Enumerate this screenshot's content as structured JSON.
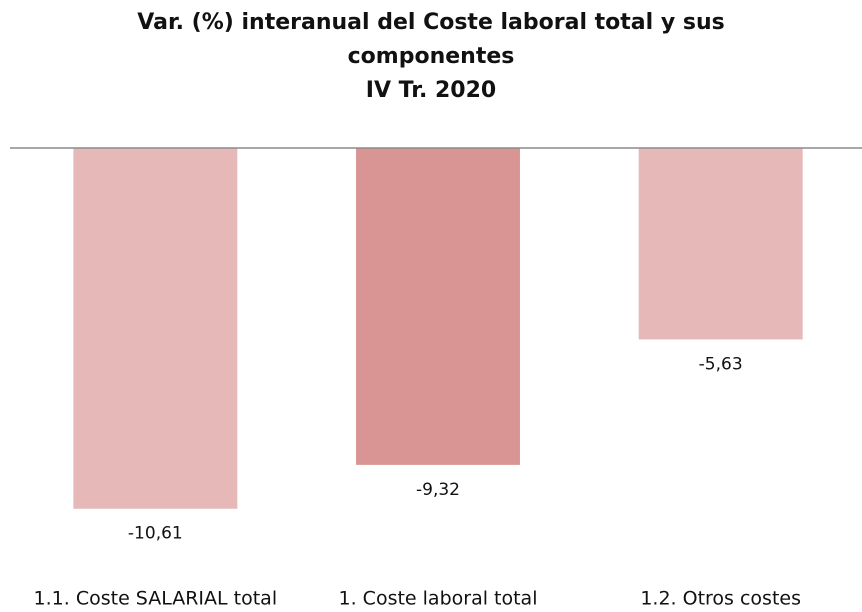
{
  "chart_data": {
    "type": "bar",
    "title": "Var. (%) interanual del Coste laboral total y sus componentes",
    "subtitle": "IV Tr. 2020",
    "categories": [
      "1.1. Coste SALARIAL total",
      "1. Coste laboral total",
      "1.2. Otros costes"
    ],
    "values": [
      -10.61,
      -9.32,
      -5.63
    ],
    "value_labels": [
      "-10,61",
      "-9,32",
      "-5,63"
    ],
    "colors": [
      "#e6b8b7",
      "#d99594",
      "#e6b8b7"
    ],
    "ylim": [
      -12,
      0
    ]
  }
}
